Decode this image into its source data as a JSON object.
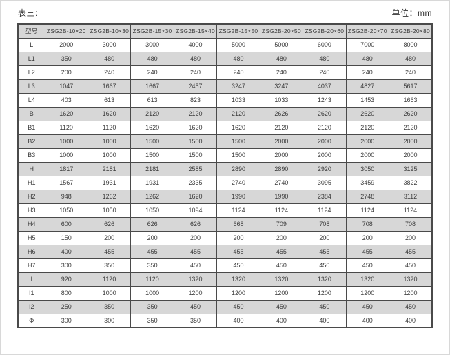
{
  "page": {
    "table_label": "表三:",
    "unit_label": "单位：mm"
  },
  "colors": {
    "row_stripe": "#d7d7d7",
    "grid_line": "#4a4a4a",
    "text": "#3d3d3d"
  },
  "table": {
    "model_header": "型号",
    "columns": [
      "ZSG2B-10×20",
      "ZSG2B-10×30",
      "ZSG2B-15×30",
      "ZSG2B-15×40",
      "ZSG2B-15×50",
      "ZSG2B-20×50",
      "ZSG2B-20×60",
      "ZSG2B-20×70",
      "ZSG2B-20×80"
    ],
    "rows": [
      {
        "label": "L",
        "values": [
          2000,
          3000,
          3000,
          4000,
          5000,
          5000,
          6000,
          7000,
          8000
        ]
      },
      {
        "label": "L1",
        "values": [
          350,
          480,
          480,
          480,
          480,
          480,
          480,
          480,
          480
        ]
      },
      {
        "label": "L2",
        "values": [
          200,
          240,
          240,
          240,
          240,
          240,
          240,
          240,
          240
        ]
      },
      {
        "label": "L3",
        "values": [
          1047,
          1667,
          1667,
          2457,
          3247,
          3247,
          4037,
          4827,
          5617
        ]
      },
      {
        "label": "L4",
        "values": [
          403,
          613,
          613,
          823,
          1033,
          1033,
          1243,
          1453,
          1663
        ]
      },
      {
        "label": "B",
        "values": [
          1620,
          1620,
          2120,
          2120,
          2120,
          2626,
          2620,
          2620,
          2620
        ]
      },
      {
        "label": "B1",
        "values": [
          1120,
          1120,
          1620,
          1620,
          1620,
          2120,
          2120,
          2120,
          2120
        ]
      },
      {
        "label": "B2",
        "values": [
          1000,
          1000,
          1500,
          1500,
          1500,
          2000,
          2000,
          2000,
          2000
        ]
      },
      {
        "label": "B3",
        "values": [
          1000,
          1000,
          1500,
          1500,
          1500,
          2000,
          2000,
          2000,
          2000
        ]
      },
      {
        "label": "H",
        "values": [
          1817,
          2181,
          2181,
          2585,
          2890,
          2890,
          2920,
          3050,
          3125
        ]
      },
      {
        "label": "H1",
        "values": [
          1567,
          1931,
          1931,
          2335,
          2740,
          2740,
          3095,
          3459,
          3822
        ]
      },
      {
        "label": "H2",
        "values": [
          948,
          1262,
          1262,
          1620,
          1990,
          1990,
          2384,
          2748,
          3112
        ]
      },
      {
        "label": "H3",
        "values": [
          1050,
          1050,
          1050,
          1094,
          1124,
          1124,
          1124,
          1124,
          1124
        ]
      },
      {
        "label": "H4",
        "values": [
          600,
          626,
          626,
          626,
          668,
          709,
          708,
          708,
          708
        ]
      },
      {
        "label": "H5",
        "values": [
          150,
          200,
          200,
          200,
          200,
          200,
          200,
          200,
          200
        ]
      },
      {
        "label": "H6",
        "values": [
          400,
          455,
          455,
          455,
          455,
          455,
          455,
          455,
          455
        ]
      },
      {
        "label": "H7",
        "values": [
          300,
          350,
          350,
          450,
          450,
          450,
          450,
          450,
          450
        ]
      },
      {
        "label": "I",
        "values": [
          920,
          1120,
          1120,
          1320,
          1320,
          1320,
          1320,
          1320,
          1320
        ]
      },
      {
        "label": "I1",
        "values": [
          800,
          1000,
          1000,
          1200,
          1200,
          1200,
          1200,
          1200,
          1200
        ]
      },
      {
        "label": "I2",
        "values": [
          250,
          350,
          350,
          450,
          450,
          450,
          450,
          450,
          450
        ]
      },
      {
        "label": "Φ",
        "values": [
          300,
          300,
          350,
          350,
          400,
          400,
          400,
          400,
          400
        ]
      }
    ]
  }
}
